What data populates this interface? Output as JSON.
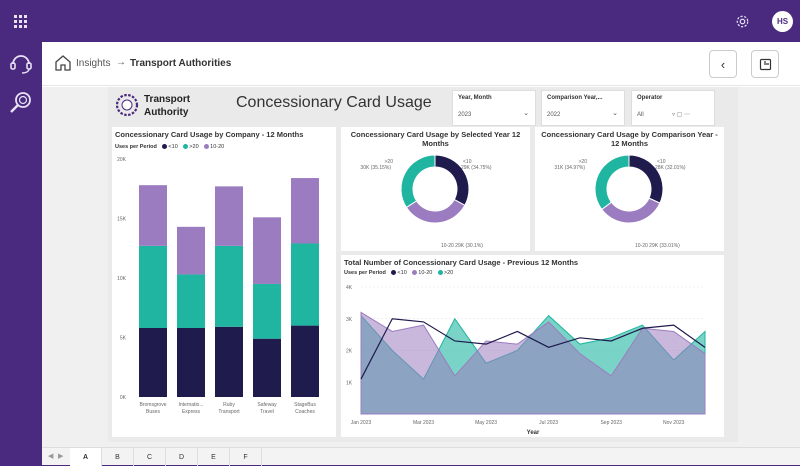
{
  "header": {
    "user_initials": "HS"
  },
  "breadcrumb": {
    "root": "Insights",
    "current": "Transport Authorities"
  },
  "report": {
    "logo_line1": "Transport",
    "logo_line2": "Authority",
    "title": "Concessionary Card Usage"
  },
  "slicers": [
    {
      "label": "Year, Month",
      "value": "2023"
    },
    {
      "label": "Comparison Year,...",
      "value": "2022"
    },
    {
      "label": "Operator",
      "value": "All"
    }
  ],
  "colors": {
    "lt10": "#1f1b4d",
    "gt20": "#1fb5a0",
    "r10_20": "#9c7cc0"
  },
  "bar_chart": {
    "title": "Concessionary Card Usage by Company - 12 Months",
    "legend_title": "Uses per Period",
    "legend": [
      "<10",
      ">20",
      "10-20"
    ],
    "chart_data": {
      "type": "bar",
      "categories": [
        [
          "Bromsgrove",
          "Buses"
        ],
        [
          "Internatio...",
          "Express"
        ],
        [
          "Ruby",
          "Transport"
        ],
        [
          "Safeway",
          "Travel"
        ],
        [
          "StageBus",
          "Coaches"
        ]
      ],
      "series": [
        {
          "name": "<10",
          "values": [
            5800,
            5800,
            5900,
            4900,
            6000
          ]
        },
        {
          "name": ">20",
          "values": [
            6900,
            4500,
            6800,
            4600,
            6900
          ]
        },
        {
          "name": "10-20",
          "values": [
            5100,
            4000,
            5000,
            5600,
            5500
          ]
        }
      ],
      "yticks": [
        "20K",
        "15K",
        "10K",
        "5K",
        "0K"
      ],
      "ylim": [
        0,
        20000
      ]
    }
  },
  "donut1": {
    "title": "Concessionary Card Usage by Selected Year 12 Months",
    "chart_data": {
      "type": "pie",
      "slices": [
        {
          "name": "<10",
          "value": 29,
          "label": "29K (34.75%)"
        },
        {
          "name": "10-20",
          "value": 29,
          "label": "10-20 29K (30.1%)"
        },
        {
          "name": ">20",
          "value": 30,
          "label": "30K (35.15%)"
        }
      ]
    },
    "tag_gt20": ">20",
    "tag_lt10": "<10"
  },
  "donut2": {
    "title": "Concessionary Card Usage by Comparison Year - 12 Months",
    "chart_data": {
      "type": "pie",
      "slices": [
        {
          "name": "<10",
          "value": 28,
          "label": "28K (32.01%)"
        },
        {
          "name": "10-20",
          "value": 29,
          "label": "10-20 29K (33.01%)"
        },
        {
          "name": ">20",
          "value": 31,
          "label": "31K (34.97%)"
        }
      ]
    },
    "tag_gt20": ">20",
    "tag_lt10": "<10"
  },
  "area_chart": {
    "title": "Total Number of Concessionary Card Usage - Previous 12 Months",
    "legend_title": "Uses per Period",
    "legend": [
      "<10",
      "10-20",
      ">20"
    ],
    "chart_data": {
      "type": "area",
      "x": [
        "Jan 2023",
        "Feb 2023",
        "Mar 2023",
        "Apr 2023",
        "May 2023",
        "Jun 2023",
        "Jul 2023",
        "Aug 2023",
        "Sep 2023",
        "Oct 2023",
        "Nov 2023",
        "Dec 2023"
      ],
      "xticks": [
        "Jan 2023",
        "Mar 2023",
        "May 2023",
        "Jul 2023",
        "Sep 2023",
        "Nov 2023"
      ],
      "xlabel": "Year",
      "yticks": [
        "4K",
        "3K",
        "2K",
        "1K"
      ],
      "ylim": [
        0,
        4000
      ],
      "series": [
        {
          "name": "<10",
          "values": [
            1100,
            3000,
            2900,
            2300,
            2200,
            2600,
            2100,
            2400,
            2300,
            2700,
            2800,
            2100
          ]
        },
        {
          "name": "10-20",
          "values": [
            3200,
            2600,
            2800,
            1200,
            2300,
            2200,
            2900,
            1900,
            1200,
            2700,
            2600,
            1900
          ]
        },
        {
          "name": ">20",
          "values": [
            3100,
            2000,
            1100,
            3000,
            1600,
            2000,
            3100,
            2200,
            2400,
            2800,
            1700,
            2600
          ]
        }
      ]
    }
  },
  "page_tabs": [
    "A",
    "B",
    "C",
    "D",
    "E",
    "F"
  ]
}
